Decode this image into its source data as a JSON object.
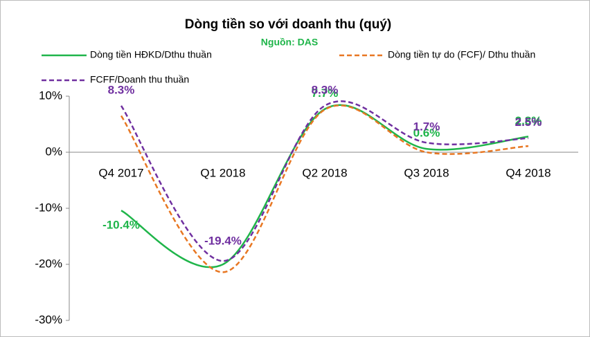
{
  "chart_data": {
    "type": "line",
    "title": "Dòng tiền so với doanh thu (quý)",
    "subtitle": "Nguồn: DAS",
    "categories": [
      "Q4 2017",
      "Q1 2018",
      "Q2 2018",
      "Q3 2018",
      "Q4 2018"
    ],
    "series": [
      {
        "name": "Dòng tiền HĐKD/Dthu  thuần",
        "color": "#1fb54a",
        "dash": false,
        "values": [
          -10.4,
          -20.0,
          7.7,
          0.6,
          2.8
        ],
        "value_labels": [
          "-10.4%",
          null,
          "7.7%",
          "0.6%",
          "2.8%"
        ]
      },
      {
        "name": "Dòng tiền tự do (FCF)/ Dthu thuần",
        "color": "#e87722",
        "dash": true,
        "values": [
          6.5,
          -21.4,
          7.6,
          0.0,
          1.1
        ]
      },
      {
        "name": "FCFF/Doanh thu thuần",
        "color": "#7030a0",
        "dash": true,
        "values": [
          8.3,
          -19.4,
          8.3,
          1.7,
          2.5
        ],
        "value_labels": [
          "8.3%",
          "-19.4%",
          "8.3%",
          "1.7%",
          "2.5%"
        ]
      }
    ],
    "ylim": [
      -30,
      10
    ],
    "yticks": [
      {
        "value": -30,
        "label": "-30%"
      },
      {
        "value": -20,
        "label": "-20%"
      },
      {
        "value": -10,
        "label": "-10%"
      },
      {
        "value": 0,
        "label": "0%"
      },
      {
        "value": 10,
        "label": "10%"
      }
    ]
  }
}
